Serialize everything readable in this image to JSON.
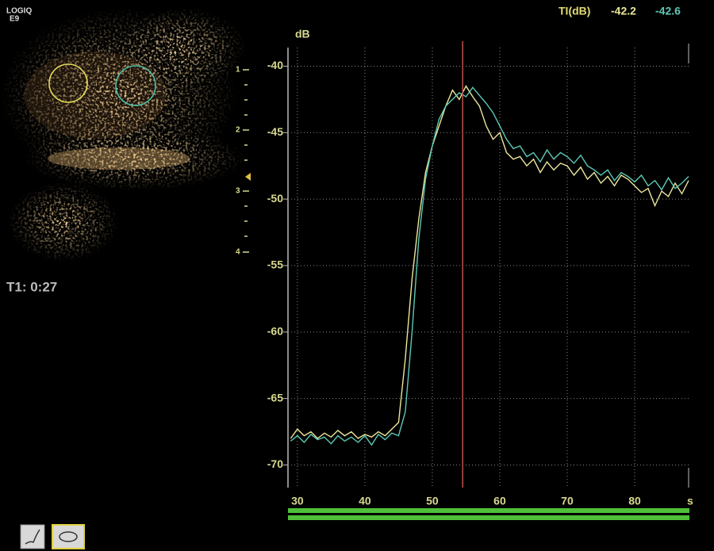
{
  "screen": {
    "logo": [
      "LOGIQ",
      "E9"
    ],
    "timer": "T1: 0:27",
    "depth_ticks": [
      1,
      2,
      3,
      4
    ]
  },
  "chart_data": {
    "type": "line",
    "y_unit": "dB",
    "x_unit": "s",
    "readout_label": "TI(dB)",
    "x": [
      29,
      30,
      31,
      32,
      33,
      34,
      35,
      36,
      37,
      38,
      39,
      40,
      41,
      42,
      43,
      44,
      45,
      46,
      47,
      48,
      49,
      50,
      51,
      52,
      53,
      54,
      55,
      56,
      57,
      58,
      59,
      60,
      61,
      62,
      63,
      64,
      65,
      66,
      67,
      68,
      69,
      70,
      71,
      72,
      73,
      74,
      75,
      76,
      77,
      78,
      79,
      80,
      81,
      82,
      83,
      84,
      85,
      86,
      87,
      88
    ],
    "series": [
      {
        "color": "#ece79a",
        "readout": -42.2,
        "values": [
          -68.0,
          -67.3,
          -67.8,
          -67.5,
          -68.0,
          -67.6,
          -67.9,
          -67.4,
          -67.8,
          -67.5,
          -68.0,
          -67.7,
          -67.9,
          -67.5,
          -67.8,
          -67.3,
          -66.8,
          -62.0,
          -56.0,
          -51.5,
          -48.0,
          -46.0,
          -44.5,
          -43.0,
          -41.8,
          -42.5,
          -41.5,
          -42.3,
          -43.0,
          -44.5,
          -45.5,
          -45.0,
          -46.5,
          -47.0,
          -46.8,
          -47.5,
          -47.0,
          -48.0,
          -47.2,
          -47.8,
          -47.3,
          -47.5,
          -48.2,
          -47.6,
          -48.5,
          -48.0,
          -48.8,
          -48.3,
          -49.0,
          -48.2,
          -48.5,
          -49.0,
          -49.5,
          -49.2,
          -50.5,
          -49.4,
          -49.8,
          -48.8,
          -49.6,
          -48.6
        ]
      },
      {
        "color": "#5cc9b6",
        "readout": -42.6,
        "values": [
          -68.2,
          -67.8,
          -68.3,
          -67.7,
          -68.1,
          -67.9,
          -68.4,
          -67.8,
          -68.2,
          -67.9,
          -68.3,
          -67.8,
          -68.5,
          -67.7,
          -68.1,
          -67.6,
          -67.8,
          -66.0,
          -60.0,
          -53.0,
          -48.5,
          -46.0,
          -44.0,
          -43.0,
          -42.5,
          -42.0,
          -42.3,
          -41.6,
          -42.2,
          -42.8,
          -43.5,
          -44.5,
          -45.5,
          -46.2,
          -46.0,
          -46.8,
          -46.5,
          -47.2,
          -46.3,
          -47.0,
          -46.5,
          -46.8,
          -47.3,
          -46.7,
          -47.5,
          -47.8,
          -48.2,
          -47.8,
          -48.6,
          -48.0,
          -48.3,
          -48.7,
          -48.2,
          -49.0,
          -48.6,
          -49.3,
          -48.4,
          -49.2,
          -48.8,
          -48.3
        ]
      }
    ],
    "cursor_x": 54.5,
    "cursor_color": "#c0504a",
    "xlim": [
      28.6,
      88
    ],
    "xticks": [
      30,
      40,
      50,
      60,
      70,
      80
    ],
    "ylim": [
      -71.7,
      -38.6
    ],
    "yticks": [
      -70,
      -65,
      -60,
      -55,
      -50,
      -45,
      -40
    ],
    "grid": true
  }
}
